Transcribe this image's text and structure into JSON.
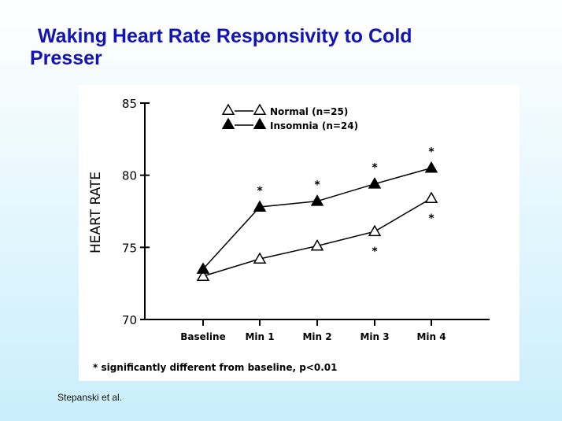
{
  "slide": {
    "title_line1": "Waking Heart Rate Responsivity to Cold",
    "title_line2": "Presser",
    "citation": "Stepanski  et al."
  },
  "chart_data": {
    "type": "line",
    "ylabel": "HEART RATE",
    "xlabel": "",
    "categories": [
      "Baseline",
      "Min 1",
      "Min 2",
      "Min 3",
      "Min 4"
    ],
    "ylim": [
      70,
      85
    ],
    "yticks": [
      70,
      75,
      80,
      85
    ],
    "grid": false,
    "legend_position": "top-center",
    "series": [
      {
        "name": "Normal (n=25)",
        "marker": "open-triangle",
        "values": [
          73.0,
          74.2,
          75.1,
          76.1,
          78.4
        ],
        "significance_marks": [
          "",
          "",
          "",
          "*",
          "*"
        ]
      },
      {
        "name": "Insomnia (n=24)",
        "marker": "filled-triangle",
        "values": [
          73.5,
          77.8,
          78.2,
          79.4,
          80.5
        ],
        "significance_marks": [
          "",
          "*",
          "*",
          "*",
          "*"
        ]
      }
    ],
    "footnote": "* significantly different from baseline, p<0.01"
  }
}
